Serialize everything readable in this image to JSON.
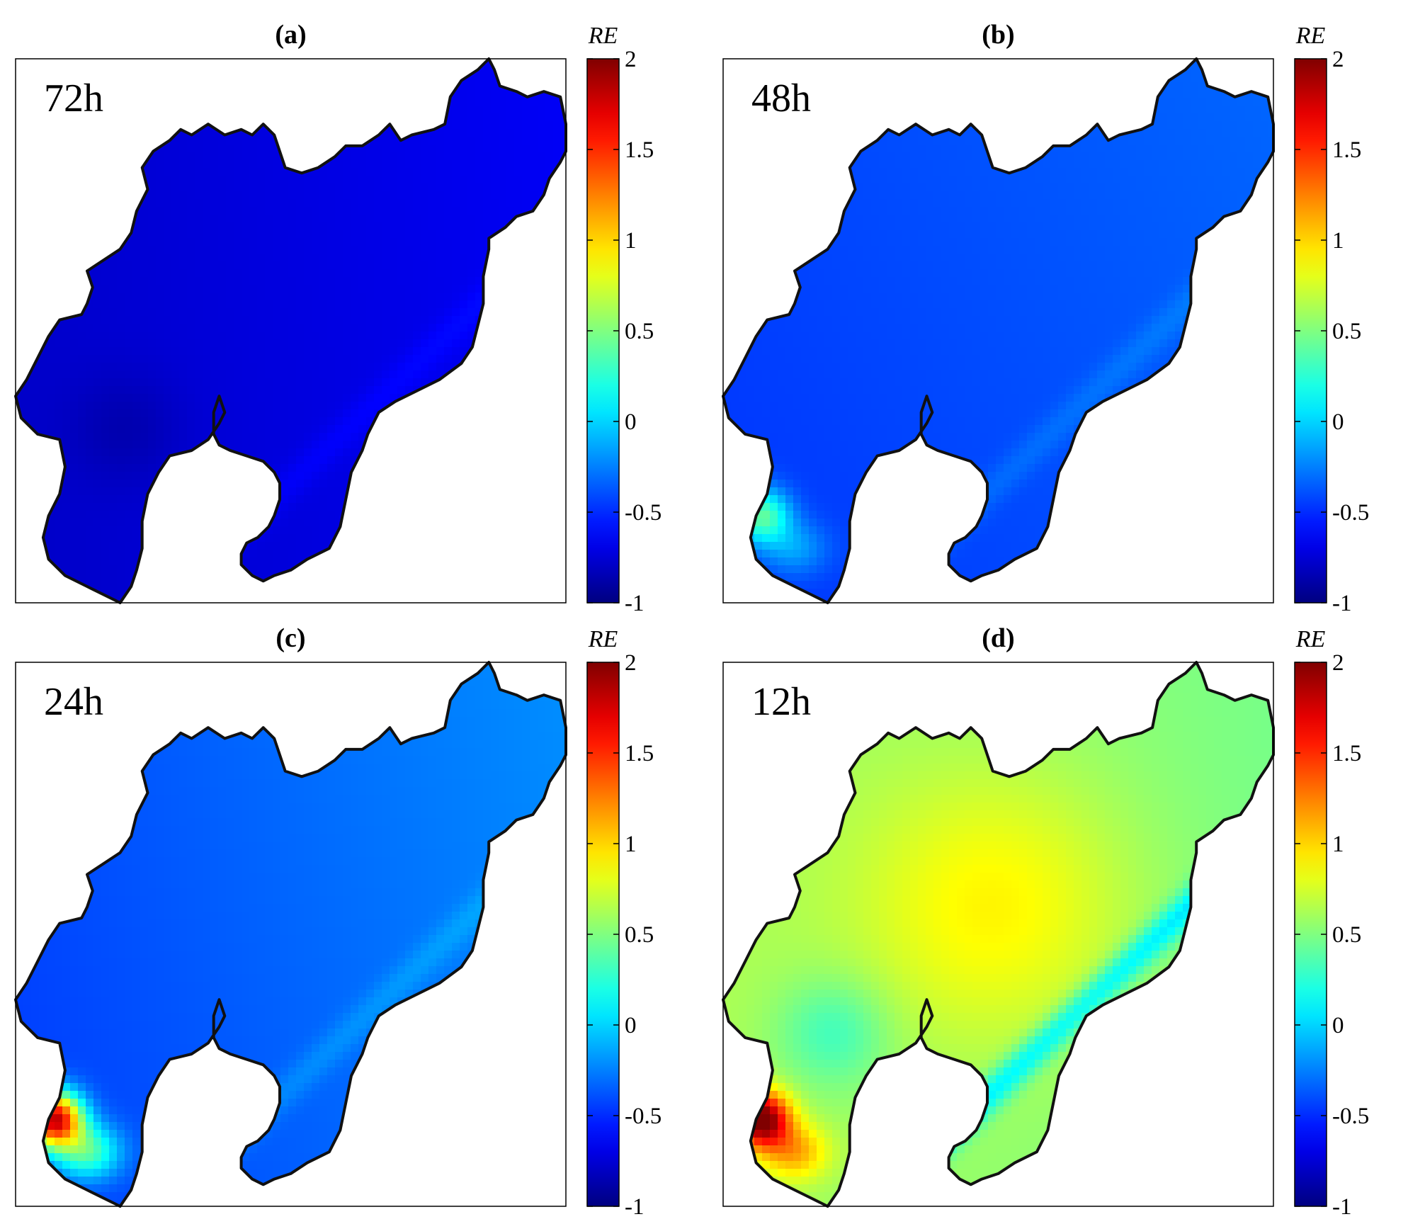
{
  "figure": {
    "panels": [
      {
        "label": "(a)",
        "time": "72h",
        "colorbar_title": "RE",
        "field": {
          "base": -0.72,
          "east_trend": 0.12,
          "north_trend": 0.02,
          "hot_spot": 0.0,
          "diagonal_band": 0.08,
          "center_warm": 0.0,
          "sw_cool": -0.1
        }
      },
      {
        "label": "(b)",
        "time": "48h",
        "colorbar_title": "RE",
        "field": {
          "base": -0.4,
          "east_trend": 0.1,
          "north_trend": 0.05,
          "hot_spot": 0.85,
          "diagonal_band": 0.1,
          "center_warm": 0.0,
          "sw_cool": 0.0
        }
      },
      {
        "label": "(c)",
        "time": "24h",
        "colorbar_title": "RE",
        "field": {
          "base": -0.33,
          "east_trend": 0.2,
          "north_trend": 0.05,
          "hot_spot": 2.2,
          "diagonal_band": 0.12,
          "center_warm": 0.0,
          "sw_cool": 0.0
        }
      },
      {
        "label": "(d)",
        "time": "12h",
        "colorbar_title": "RE",
        "field": {
          "base": 0.55,
          "east_trend": -0.15,
          "north_trend": 0.0,
          "hot_spot": 1.5,
          "diagonal_band": -0.5,
          "center_warm": 0.35,
          "sw_cool": -0.3
        }
      }
    ],
    "colorbar": {
      "min": -1,
      "max": 2,
      "ticks": [
        "-1",
        "-0.5",
        "0",
        "0.5",
        "1",
        "1.5",
        "2"
      ],
      "tick_values": [
        -1,
        -0.5,
        0,
        0.5,
        1,
        1.5,
        2
      ],
      "colormap": "jet"
    },
    "colors": {
      "outline": "#111111",
      "frame": "#000000"
    }
  }
}
